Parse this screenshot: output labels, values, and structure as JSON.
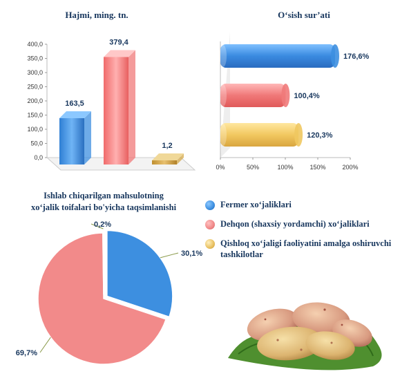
{
  "titles": {
    "bar_chart": "Hajmi, ming. tn.",
    "growth_chart": "O‘sish sur’ati",
    "pie_chart_line1": "Ishlab chiqarilgan mahsulotning",
    "pie_chart_line2": "xo‘jalik toifalari bo'yicha taqsimlanishi"
  },
  "legend": [
    {
      "label": "Fermer xo‘jaliklari",
      "color": "#3d8fe0"
    },
    {
      "label": "Dehqon (shaxsiy yordamchi) xo‘jaliklari",
      "color": "#f08888"
    },
    {
      "label": "Qishloq xo‘jaligi faoliyatini amalga oshiruvchi tashkilotlar",
      "color": "#e8c060"
    }
  ],
  "chart_data": [
    {
      "type": "bar",
      "title": "Hajmi, ming. tn.",
      "categories": [
        "Fermer xo‘jaliklari",
        "Dehqon (shaxsiy yordamchi) xo‘jaliklari",
        "Qishloq xo‘jaligi faoliyatini amalga oshiruvchi tashkilotlar"
      ],
      "values": [
        163.5,
        379.4,
        1.2
      ],
      "value_labels": [
        "163,5",
        "379,4",
        "1,2"
      ],
      "colors": [
        "#3d8fe0",
        "#f07a7a",
        "#d4a84a"
      ],
      "ylim": [
        0,
        400
      ],
      "y_ticks": [
        "0,0",
        "50,0",
        "100,0",
        "150,0",
        "200,0",
        "250,0",
        "300,0",
        "350,0",
        "400,0"
      ],
      "grid": false
    },
    {
      "type": "bar",
      "orientation": "horizontal",
      "title": "O‘sish sur’ati",
      "categories": [
        "Fermer xo‘jaliklari",
        "Dehqon (shaxsiy yordamchi) xo‘jaliklari",
        "Qishloq xo‘jaligi faoliyatini amalga oshiruvchi tashkilotlar"
      ],
      "values": [
        176.6,
        100.4,
        120.3
      ],
      "value_labels": [
        "176,6%",
        "100,4%",
        "120,3%"
      ],
      "colors": [
        "#3d8fe0",
        "#f07a7a",
        "#f0c860"
      ],
      "xlim": [
        0,
        200
      ],
      "x_ticks": [
        "0%",
        "50%",
        "100%",
        "150%",
        "200%"
      ],
      "grid": false
    },
    {
      "type": "pie",
      "title": "Ishlab chiqarilgan mahsulotning xo‘jalik toifalari bo'yicha taqsimlanishi",
      "categories": [
        "Fermer xo‘jaliklari",
        "Dehqon (shaxsiy yordamchi) xo‘jaliklari",
        "Qishloq xo‘jaligi faoliyatini amalga oshiruvchi tashkilotlar"
      ],
      "values": [
        30.1,
        69.7,
        0.2
      ],
      "value_labels": [
        "30,1%",
        "69,7%",
        "0,2%"
      ],
      "colors": [
        "#3d8fe0",
        "#f28a8a",
        "#9bc84a"
      ]
    }
  ]
}
